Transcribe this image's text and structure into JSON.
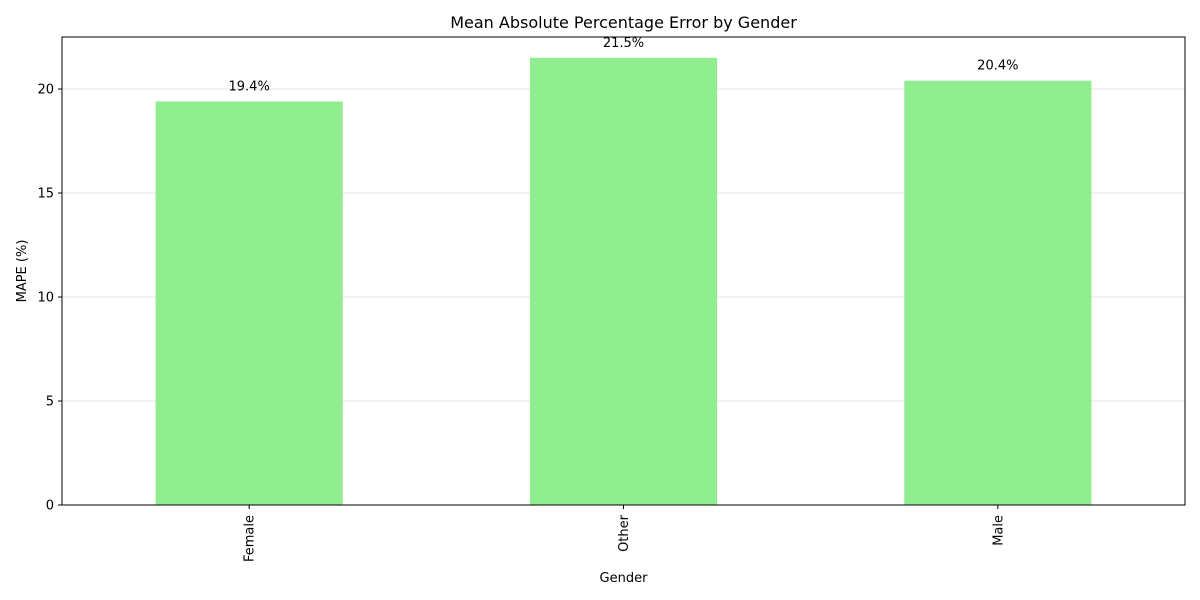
{
  "chart_data": {
    "type": "bar",
    "title": "Mean Absolute Percentage Error by Gender",
    "xlabel": "Gender",
    "ylabel": "MAPE (%)",
    "categories": [
      "Female",
      "Other",
      "Male"
    ],
    "values": [
      19.4,
      21.5,
      20.4
    ],
    "data_labels": [
      "19.4%",
      "21.5%",
      "20.4%"
    ],
    "ylim": [
      0,
      22.5
    ],
    "yticks": [
      0,
      5,
      10,
      15,
      20
    ],
    "ytick_labels": [
      "0",
      "5",
      "10",
      "15",
      "20"
    ],
    "grid": "y",
    "bar_color": "#90EE90"
  }
}
